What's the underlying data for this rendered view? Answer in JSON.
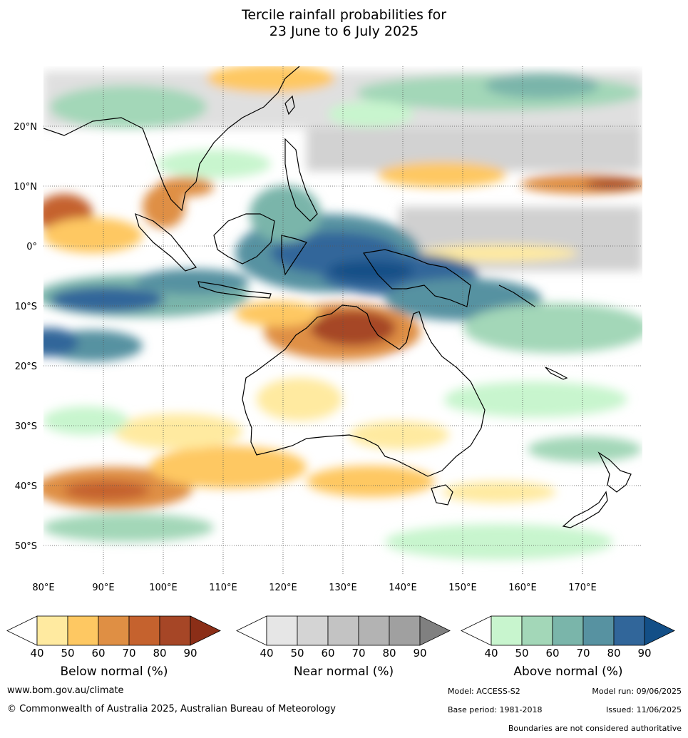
{
  "title": {
    "line1": "Tercile rainfall probabilities for",
    "line2": "23 June to 6 July 2025"
  },
  "map": {
    "lon_range": [
      80,
      180
    ],
    "lat_range": [
      -55,
      30
    ],
    "lon_ticks": [
      {
        "value": 80,
        "label": "80°E"
      },
      {
        "value": 90,
        "label": "90°E"
      },
      {
        "value": 100,
        "label": "100°E"
      },
      {
        "value": 110,
        "label": "110°E"
      },
      {
        "value": 120,
        "label": "120°E"
      },
      {
        "value": 130,
        "label": "130°E"
      },
      {
        "value": 140,
        "label": "140°E"
      },
      {
        "value": 150,
        "label": "150°E"
      },
      {
        "value": 160,
        "label": "160°E"
      },
      {
        "value": 170,
        "label": "170°E"
      }
    ],
    "lat_ticks": [
      {
        "value": 20,
        "label": "20°N"
      },
      {
        "value": 10,
        "label": "10°N"
      },
      {
        "value": 0,
        "label": "0°"
      },
      {
        "value": -10,
        "label": "10°S"
      },
      {
        "value": -20,
        "label": "20°S"
      },
      {
        "value": -30,
        "label": "30°S"
      },
      {
        "value": -40,
        "label": "40°S"
      },
      {
        "value": -50,
        "label": "50°S"
      }
    ],
    "grid": true
  },
  "colorbars": [
    {
      "key": "below",
      "label": "Below normal (%)",
      "ticks": [
        "40",
        "50",
        "60",
        "70",
        "80",
        "90"
      ],
      "colors": [
        "#ffffff",
        "#ffeaa0",
        "#fec862",
        "#df8f44",
        "#c5622e",
        "#a64626",
        "#8b2e17"
      ]
    },
    {
      "key": "near",
      "label": "Near normal (%)",
      "ticks": [
        "40",
        "50",
        "60",
        "70",
        "80",
        "90"
      ],
      "colors": [
        "#ffffff",
        "#e6e6e6",
        "#d4d4d4",
        "#c3c3c3",
        "#b3b3b3",
        "#a0a0a0",
        "#808080"
      ]
    },
    {
      "key": "above",
      "label": "Above normal (%)",
      "ticks": [
        "40",
        "50",
        "60",
        "70",
        "80",
        "90"
      ],
      "colors": [
        "#ffffff",
        "#c8f5ce",
        "#a3d7b8",
        "#7ab5aa",
        "#5792a1",
        "#31669a",
        "#134f87"
      ]
    }
  ],
  "footer": {
    "website": "www.bom.gov.au/climate",
    "copyright": "© Commonwealth of Australia 2025, Australian Bureau of Meteorology",
    "model": "Model: ACCESS-S2",
    "model_run": "Model run: 09/06/2025",
    "base_period": "Base period: 1981-2018",
    "issued": "Issued: 11/06/2025",
    "disclaimer": "Boundaries are not considered authoritative"
  }
}
